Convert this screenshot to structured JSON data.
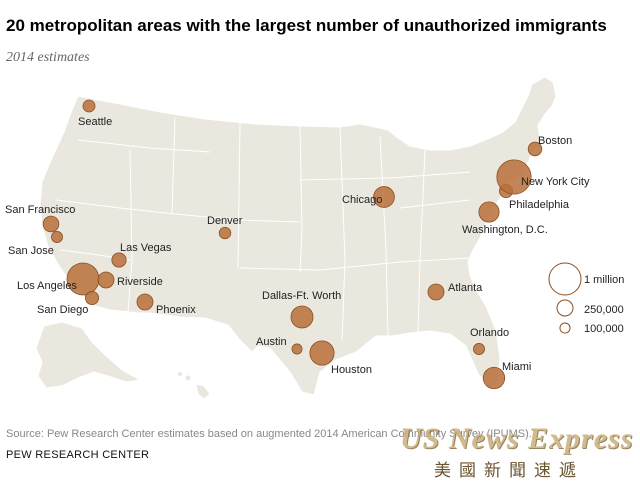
{
  "title": "20 metropolitan areas with the largest number of unauthorized immigrants",
  "subtitle": "2014 estimates",
  "source": "Source: Pew Research Center estimates based on augmented 2014 American Community Survey (IPUMS).",
  "org": "PEW RESEARCH CENTER",
  "watermark": {
    "english": "US News Express",
    "chinese": "美國新聞速遞"
  },
  "legend": [
    {
      "label": "1 million",
      "value": 1000000
    },
    {
      "label": "250,000",
      "value": 250000
    },
    {
      "label": "100,000",
      "value": 100000
    }
  ],
  "colors": {
    "land": "#e9e7de",
    "border": "#ffffff",
    "bubble": "#b8703a",
    "bubble_stroke": "#8a4f22"
  },
  "cities": [
    {
      "name": "Seattle",
      "value": 140000
    },
    {
      "name": "San Francisco",
      "value": 240000
    },
    {
      "name": "San Jose",
      "value": 120000
    },
    {
      "name": "Los Angeles",
      "value": 1000000
    },
    {
      "name": "San Diego",
      "value": 170000
    },
    {
      "name": "Riverside",
      "value": 250000
    },
    {
      "name": "Las Vegas",
      "value": 200000
    },
    {
      "name": "Phoenix",
      "value": 250000
    },
    {
      "name": "Denver",
      "value": 130000
    },
    {
      "name": "Dallas-Ft. Worth",
      "value": 475000
    },
    {
      "name": "Austin",
      "value": 100000
    },
    {
      "name": "Houston",
      "value": 575000
    },
    {
      "name": "Chicago",
      "value": 425000
    },
    {
      "name": "Atlanta",
      "value": 250000
    },
    {
      "name": "Orlando",
      "value": 120000
    },
    {
      "name": "Miami",
      "value": 450000
    },
    {
      "name": "Washington, D.C.",
      "value": 400000
    },
    {
      "name": "Philadelphia",
      "value": 170000
    },
    {
      "name": "New York City",
      "value": 1150000
    },
    {
      "name": "Boston",
      "value": 180000
    }
  ]
}
